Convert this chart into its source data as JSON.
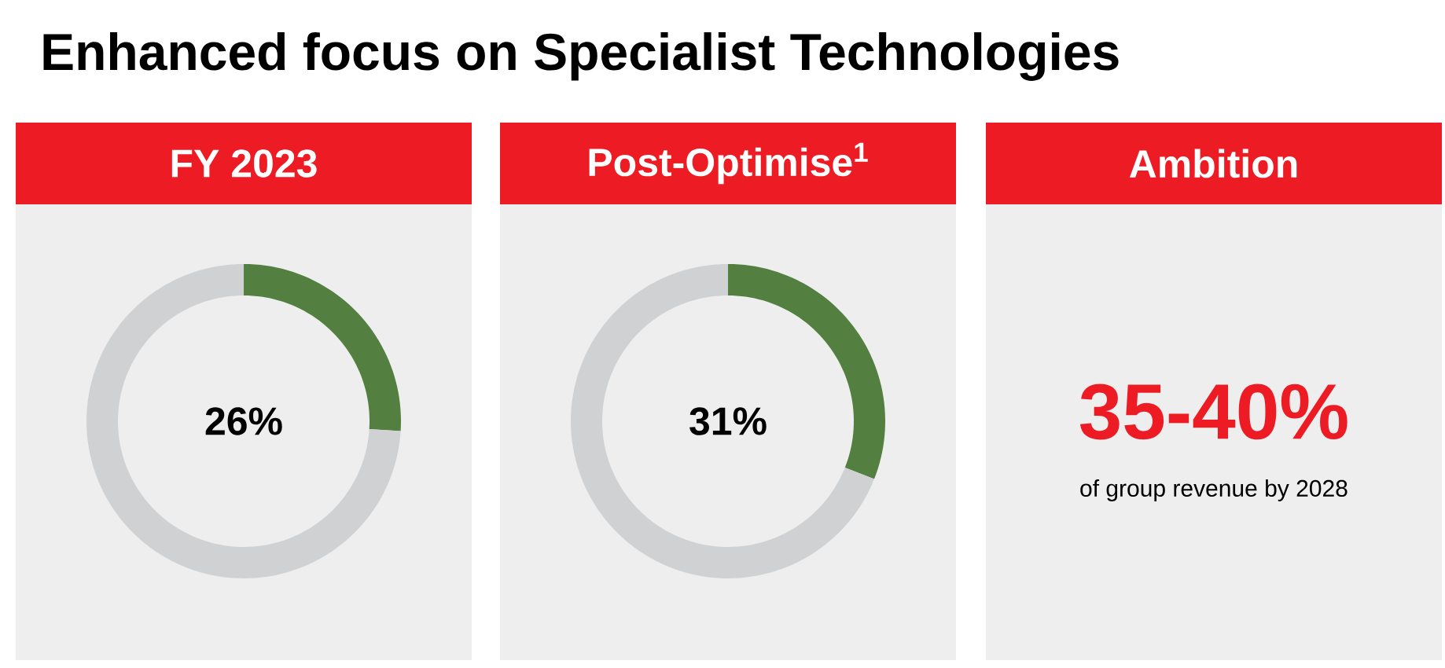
{
  "chart_data": [
    {
      "type": "other",
      "title": "Enhanced focus on Specialist Technologies"
    },
    {
      "type": "donut",
      "title": "FY 2023",
      "categories": [
        null,
        null
      ],
      "values": [
        26,
        74
      ],
      "colors": [
        "#538040",
        "#d0d1d3"
      ],
      "annotations": [
        "26%"
      ]
    },
    {
      "type": "donut",
      "title": "Post-Optimise$^{1}$",
      "categories": [
        null,
        null
      ],
      "values": [
        31,
        69
      ],
      "colors": [
        "#538040",
        "#d0d1d3"
      ],
      "annotations": [
        "31%"
      ]
    },
    {
      "type": "other",
      "title": "Ambition",
      "annotations": [
        "35-40%",
        "of group revenue by 2028"
      ]
    }
  ]
}
